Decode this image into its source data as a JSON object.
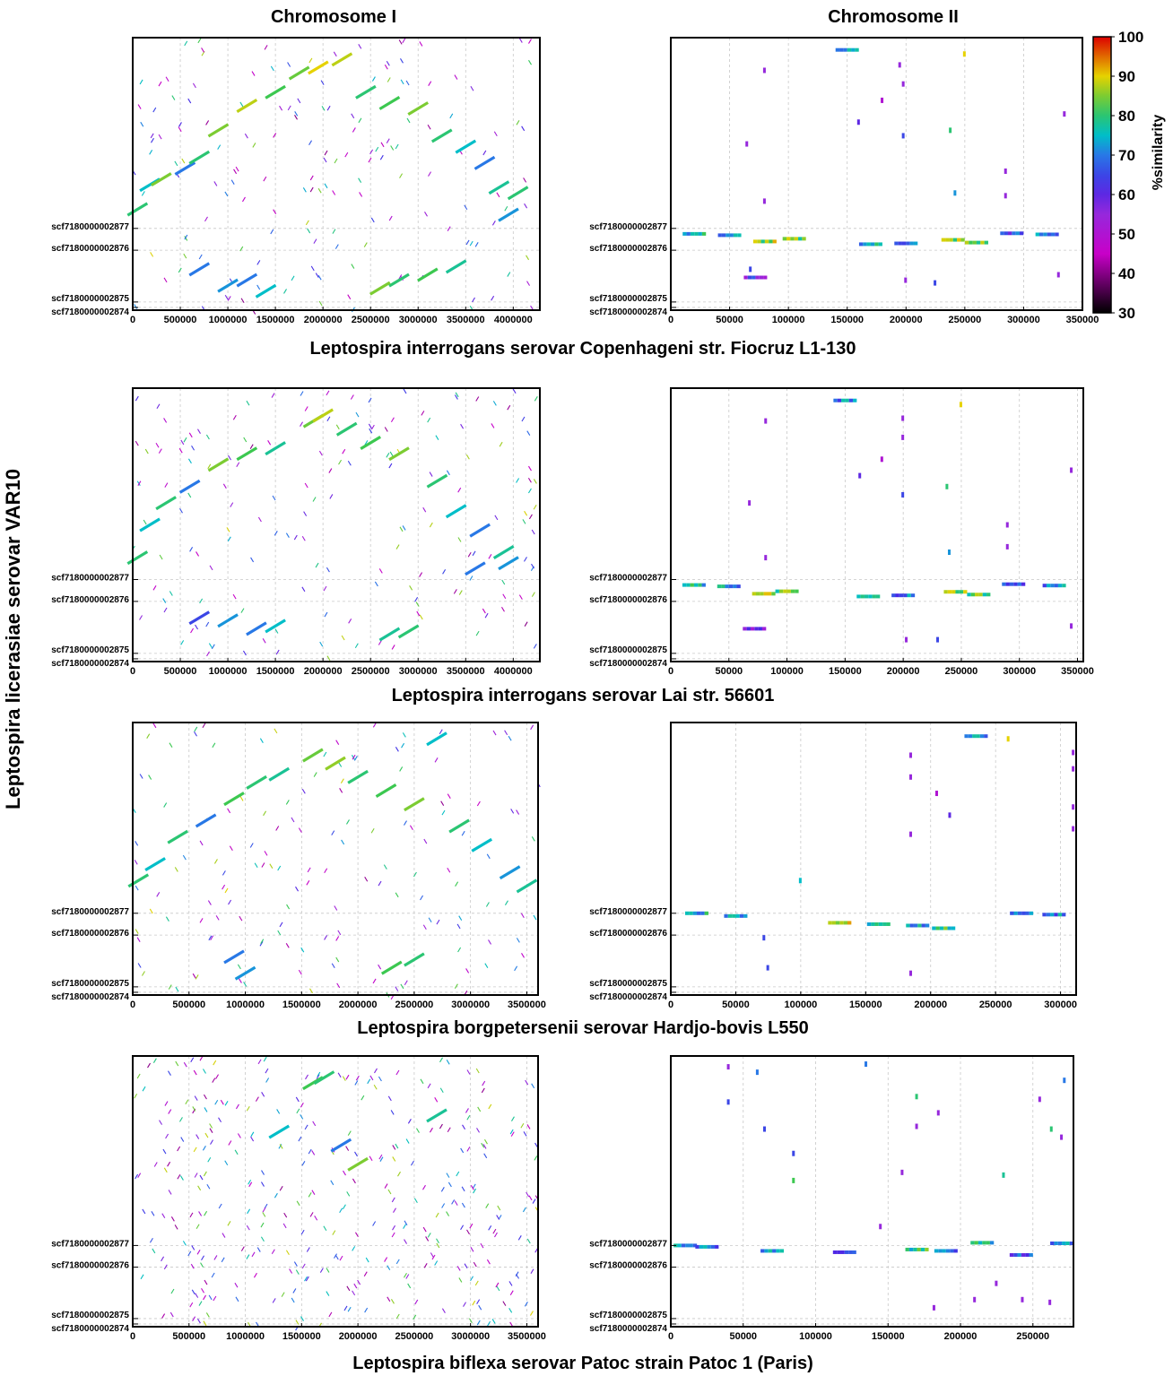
{
  "figure": {
    "col_titles": [
      "Chromosome I",
      "Chromosome II"
    ],
    "y_title": "Leptospira licerasiae serovar VAR10",
    "row_titles": [
      "Leptospira interrogans serovar Copenhageni str. Fiocruz L1-130",
      "Leptospira interrogans serovar Lai str. 56601",
      "Leptospira borgpetersenii serovar Hardjo-bovis L550",
      "Leptospira biflexa serovar Patoc strain Patoc 1 (Paris)"
    ],
    "scaffolds": [
      "scf7180000002877",
      "scf7180000002876",
      "scf7180000002875",
      "scf7180000002874"
    ],
    "colorbar": {
      "label": "%similarity",
      "min": 30,
      "max": 100,
      "ticks": [
        30,
        40,
        50,
        60,
        70,
        80,
        90,
        100
      ]
    },
    "colors": {
      "gridline": "#c8c8c8",
      "frame": "#000000"
    }
  },
  "chart_data": [
    {
      "type": "scatter",
      "panel": "Chromosome I",
      "row": 1,
      "xlim": [
        0,
        4280000
      ],
      "xticks": [
        0,
        500000,
        1000000,
        1500000,
        2000000,
        2500000,
        3000000,
        3500000,
        4000000
      ],
      "segments": [
        [
          50000,
          0.63,
          80
        ],
        [
          180000,
          0.54,
          75
        ],
        [
          300000,
          0.52,
          85
        ],
        [
          550000,
          0.48,
          70
        ],
        [
          700000,
          0.44,
          80
        ],
        [
          900000,
          0.34,
          85
        ],
        [
          1200000,
          0.25,
          88
        ],
        [
          1500000,
          0.2,
          82
        ],
        [
          1750000,
          0.13,
          84
        ],
        [
          1950000,
          0.11,
          90
        ],
        [
          2200000,
          0.08,
          88
        ],
        [
          2450000,
          0.2,
          80
        ],
        [
          2700000,
          0.24,
          82
        ],
        [
          3000000,
          0.26,
          85
        ],
        [
          3250000,
          0.36,
          80
        ],
        [
          3500000,
          0.4,
          75
        ],
        [
          3700000,
          0.46,
          70
        ],
        [
          3850000,
          0.55,
          78
        ],
        [
          4050000,
          0.57,
          80
        ],
        [
          3950000,
          0.65,
          72
        ],
        [
          1200000,
          0.89,
          70
        ],
        [
          1400000,
          0.93,
          75
        ],
        [
          2800000,
          0.89,
          80
        ],
        [
          3100000,
          0.87,
          82
        ],
        [
          3400000,
          0.84,
          78
        ],
        [
          700000,
          0.85,
          70
        ],
        [
          1000000,
          0.91,
          72
        ],
        [
          2600000,
          0.92,
          85
        ]
      ],
      "noise": 160
    },
    {
      "type": "scatter",
      "panel": "Chromosome II",
      "row": 1,
      "xlim": [
        0,
        350000
      ],
      "xticks": [
        0,
        50000,
        100000,
        150000,
        200000,
        250000,
        300000,
        350000
      ],
      "segments": [
        [
          20000,
          0.72,
          75
        ],
        [
          50000,
          0.725,
          72
        ],
        [
          80000,
          0.748,
          85
        ],
        [
          105000,
          0.738,
          82
        ],
        [
          170000,
          0.758,
          75
        ],
        [
          200000,
          0.755,
          70
        ],
        [
          240000,
          0.742,
          85
        ],
        [
          260000,
          0.752,
          83
        ],
        [
          290000,
          0.718,
          65
        ],
        [
          320000,
          0.722,
          70
        ],
        [
          150000,
          0.045,
          70
        ],
        [
          72000,
          0.88,
          60
        ]
      ],
      "points": [
        [
          80000,
          0.12,
          55
        ],
        [
          195000,
          0.1,
          55
        ],
        [
          198000,
          0.17,
          55
        ],
        [
          180000,
          0.23,
          50
        ],
        [
          160000,
          0.31,
          60
        ],
        [
          65000,
          0.39,
          55
        ],
        [
          198000,
          0.36,
          65
        ],
        [
          238000,
          0.34,
          80
        ],
        [
          242000,
          0.57,
          72
        ],
        [
          285000,
          0.49,
          55
        ],
        [
          285000,
          0.58,
          55
        ],
        [
          80000,
          0.6,
          55
        ],
        [
          335000,
          0.28,
          55
        ],
        [
          250000,
          0.06,
          90
        ],
        [
          200000,
          0.89,
          55
        ],
        [
          225000,
          0.9,
          65
        ],
        [
          68000,
          0.85,
          65
        ],
        [
          330000,
          0.87,
          55
        ]
      ]
    },
    {
      "type": "scatter",
      "panel": "Chromosome I",
      "row": 2,
      "xlim": [
        0,
        4280000
      ],
      "xticks": [
        0,
        500000,
        1000000,
        1500000,
        2000000,
        2500000,
        3000000,
        3500000,
        4000000
      ],
      "segments": [
        [
          50000,
          0.62,
          80
        ],
        [
          180000,
          0.5,
          75
        ],
        [
          350000,
          0.42,
          80
        ],
        [
          600000,
          0.36,
          70
        ],
        [
          900000,
          0.28,
          85
        ],
        [
          1200000,
          0.24,
          82
        ],
        [
          1500000,
          0.22,
          78
        ],
        [
          1900000,
          0.12,
          84
        ],
        [
          2000000,
          0.1,
          88
        ],
        [
          2250000,
          0.15,
          80
        ],
        [
          2500000,
          0.2,
          82
        ],
        [
          2800000,
          0.24,
          85
        ],
        [
          3200000,
          0.34,
          80
        ],
        [
          3400000,
          0.45,
          75
        ],
        [
          3650000,
          0.52,
          70
        ],
        [
          3900000,
          0.6,
          78
        ],
        [
          3950000,
          0.64,
          72
        ],
        [
          1300000,
          0.88,
          70
        ],
        [
          1500000,
          0.87,
          75
        ],
        [
          2700000,
          0.9,
          78
        ],
        [
          2900000,
          0.89,
          80
        ],
        [
          3600000,
          0.66,
          70
        ],
        [
          700000,
          0.84,
          65
        ],
        [
          1000000,
          0.85,
          72
        ]
      ],
      "noise": 170
    },
    {
      "type": "scatter",
      "panel": "Chromosome II",
      "row": 2,
      "xlim": [
        0,
        355000
      ],
      "xticks": [
        0,
        50000,
        100000,
        150000,
        200000,
        250000,
        300000,
        350000
      ],
      "segments": [
        [
          20000,
          0.72,
          75
        ],
        [
          50000,
          0.725,
          72
        ],
        [
          80000,
          0.752,
          85
        ],
        [
          100000,
          0.743,
          82
        ],
        [
          170000,
          0.762,
          75
        ],
        [
          200000,
          0.758,
          70
        ],
        [
          245000,
          0.745,
          85
        ],
        [
          265000,
          0.755,
          83
        ],
        [
          295000,
          0.717,
          65
        ],
        [
          330000,
          0.722,
          70
        ],
        [
          150000,
          0.045,
          70
        ],
        [
          72000,
          0.88,
          60
        ]
      ],
      "points": [
        [
          82000,
          0.12,
          55
        ],
        [
          200000,
          0.11,
          55
        ],
        [
          200000,
          0.18,
          55
        ],
        [
          182000,
          0.26,
          50
        ],
        [
          163000,
          0.32,
          60
        ],
        [
          68000,
          0.42,
          55
        ],
        [
          200000,
          0.39,
          65
        ],
        [
          238000,
          0.36,
          80
        ],
        [
          240000,
          0.6,
          72
        ],
        [
          290000,
          0.5,
          55
        ],
        [
          290000,
          0.58,
          55
        ],
        [
          82000,
          0.62,
          55
        ],
        [
          345000,
          0.3,
          55
        ],
        [
          250000,
          0.06,
          90
        ],
        [
          203000,
          0.92,
          55
        ],
        [
          230000,
          0.92,
          65
        ],
        [
          345000,
          0.87,
          55
        ]
      ]
    },
    {
      "type": "scatter",
      "panel": "Chromosome I",
      "row": 3,
      "xlim": [
        0,
        3600000
      ],
      "xticks": [
        0,
        500000,
        1000000,
        1500000,
        2000000,
        2500000,
        3000000,
        3500000
      ],
      "segments": [
        [
          50000,
          0.58,
          80
        ],
        [
          200000,
          0.52,
          75
        ],
        [
          400000,
          0.42,
          80
        ],
        [
          650000,
          0.36,
          70
        ],
        [
          900000,
          0.28,
          82
        ],
        [
          1100000,
          0.22,
          80
        ],
        [
          1300000,
          0.19,
          78
        ],
        [
          1600000,
          0.12,
          84
        ],
        [
          1800000,
          0.15,
          86
        ],
        [
          2000000,
          0.2,
          80
        ],
        [
          2250000,
          0.25,
          82
        ],
        [
          2500000,
          0.3,
          85
        ],
        [
          2900000,
          0.38,
          80
        ],
        [
          3100000,
          0.45,
          75
        ],
        [
          3350000,
          0.55,
          72
        ],
        [
          3500000,
          0.6,
          78
        ],
        [
          2500000,
          0.87,
          80
        ],
        [
          2300000,
          0.9,
          82
        ],
        [
          900000,
          0.86,
          70
        ],
        [
          1000000,
          0.92,
          72
        ],
        [
          2700000,
          0.06,
          75
        ]
      ],
      "noise": 150
    },
    {
      "type": "scatter",
      "panel": "Chromosome II",
      "row": 3,
      "xlim": [
        0,
        312000
      ],
      "xticks": [
        0,
        50000,
        100000,
        150000,
        200000,
        250000,
        300000
      ],
      "segments": [
        [
          20000,
          0.7,
          75
        ],
        [
          50000,
          0.71,
          72
        ],
        [
          130000,
          0.735,
          85
        ],
        [
          160000,
          0.74,
          80
        ],
        [
          190000,
          0.745,
          72
        ],
        [
          210000,
          0.755,
          80
        ],
        [
          270000,
          0.7,
          66
        ],
        [
          295000,
          0.705,
          70
        ],
        [
          235000,
          0.05,
          70
        ]
      ],
      "points": [
        [
          185000,
          0.12,
          55
        ],
        [
          185000,
          0.2,
          55
        ],
        [
          205000,
          0.26,
          50
        ],
        [
          215000,
          0.34,
          60
        ],
        [
          185000,
          0.41,
          55
        ],
        [
          310000,
          0.11,
          55
        ],
        [
          310000,
          0.17,
          55
        ],
        [
          310000,
          0.31,
          55
        ],
        [
          310000,
          0.39,
          55
        ],
        [
          100000,
          0.58,
          75
        ],
        [
          72000,
          0.79,
          65
        ],
        [
          75000,
          0.9,
          65
        ],
        [
          185000,
          0.92,
          55
        ],
        [
          260000,
          0.06,
          90
        ]
      ]
    },
    {
      "type": "scatter",
      "panel": "Chromosome I",
      "row": 4,
      "xlim": [
        0,
        3600000
      ],
      "xticks": [
        0,
        500000,
        1000000,
        1500000,
        2000000,
        2500000,
        3000000,
        3500000
      ],
      "segments": [
        [
          1600000,
          0.1,
          82
        ],
        [
          1700000,
          0.08,
          80
        ],
        [
          2000000,
          0.4,
          85
        ],
        [
          1850000,
          0.33,
          70
        ],
        [
          1300000,
          0.28,
          75
        ],
        [
          2700000,
          0.22,
          78
        ]
      ],
      "noise": 360
    },
    {
      "type": "scatter",
      "panel": "Chromosome II",
      "row": 4,
      "xlim": [
        0,
        278000
      ],
      "xticks": [
        0,
        50000,
        100000,
        150000,
        200000,
        250000
      ],
      "segments": [
        [
          10000,
          0.7,
          75
        ],
        [
          25000,
          0.705,
          70
        ],
        [
          70000,
          0.72,
          72
        ],
        [
          120000,
          0.725,
          65
        ],
        [
          170000,
          0.715,
          78
        ],
        [
          190000,
          0.72,
          70
        ],
        [
          215000,
          0.69,
          75
        ],
        [
          242000,
          0.735,
          65
        ],
        [
          270000,
          0.692,
          70
        ]
      ],
      "points": [
        [
          40000,
          0.04,
          55
        ],
        [
          60000,
          0.06,
          70
        ],
        [
          40000,
          0.17,
          65
        ],
        [
          65000,
          0.27,
          65
        ],
        [
          85000,
          0.36,
          65
        ],
        [
          85000,
          0.46,
          82
        ],
        [
          135000,
          0.03,
          70
        ],
        [
          170000,
          0.15,
          80
        ],
        [
          185000,
          0.21,
          55
        ],
        [
          170000,
          0.26,
          55
        ],
        [
          160000,
          0.43,
          55
        ],
        [
          255000,
          0.16,
          55
        ],
        [
          263000,
          0.27,
          80
        ],
        [
          270000,
          0.3,
          55
        ],
        [
          230000,
          0.44,
          78
        ],
        [
          182000,
          0.93,
          55
        ],
        [
          210000,
          0.9,
          55
        ],
        [
          243000,
          0.9,
          55
        ],
        [
          262000,
          0.91,
          55
        ],
        [
          225000,
          0.84,
          55
        ],
        [
          272000,
          0.09,
          70
        ],
        [
          145000,
          0.63,
          55
        ]
      ]
    }
  ]
}
